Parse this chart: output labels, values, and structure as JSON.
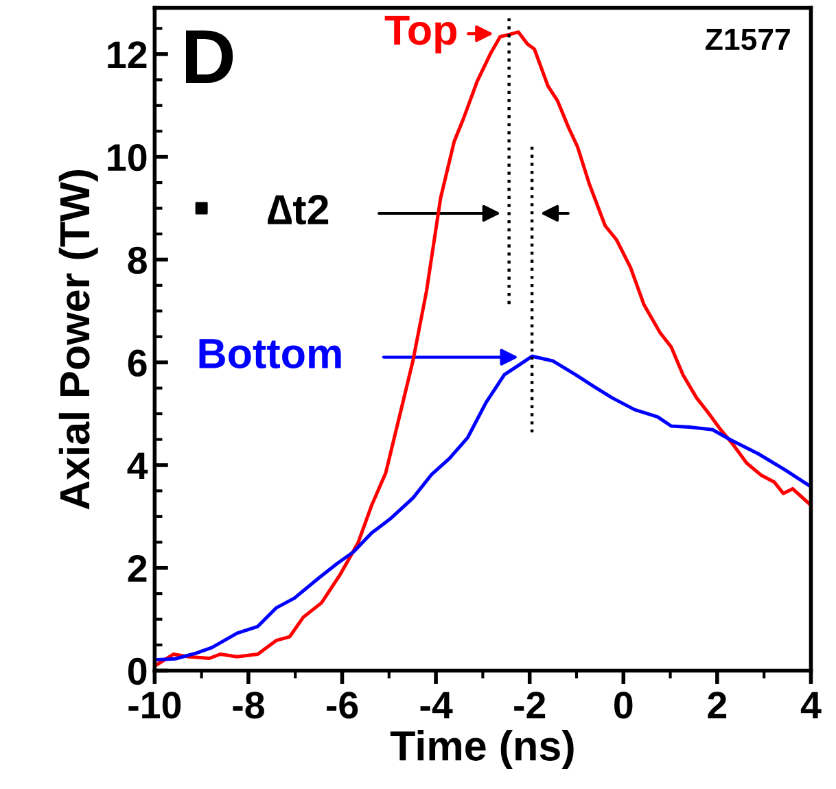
{
  "chart_data": {
    "type": "line",
    "xlabel": "Time (ns)",
    "ylabel": "Axial Power (TW)",
    "xlim": [
      -10,
      4
    ],
    "ylim": [
      0,
      12.9
    ],
    "xticks": [
      -10,
      -8,
      -6,
      -4,
      -2,
      0,
      2,
      4
    ],
    "yticks": [
      0,
      2,
      4,
      6,
      8,
      10,
      12
    ],
    "grid": false,
    "legend": false,
    "marker": "none",
    "line_style": "solid",
    "series": [
      {
        "color": "#ff0000",
        "x": [
          -10,
          -9.6,
          -9.27,
          -8.83,
          -8.6,
          -8.24,
          -7.8,
          -7.4,
          -7.12,
          -6.83,
          -6.44,
          -6.05,
          -5.66,
          -5.37,
          -5.07,
          -4.78,
          -4.49,
          -4.2,
          -3.9,
          -3.61,
          -3.41,
          -3.12,
          -2.83,
          -2.63,
          -2.44,
          -2.24,
          -2.05,
          -1.9,
          -1.61,
          -1.41,
          -1.17,
          -0.98,
          -0.73,
          -0.39,
          -0.15,
          0.15,
          0.44,
          0.78,
          1.02,
          1.27,
          1.56,
          1.8,
          2.05,
          2.34,
          2.63,
          2.93,
          3.22,
          3.41,
          3.61,
          4.0
        ],
        "values": [
          0.09,
          0.32,
          0.27,
          0.24,
          0.32,
          0.27,
          0.32,
          0.59,
          0.66,
          1.04,
          1.32,
          1.86,
          2.49,
          3.22,
          3.85,
          4.94,
          6.03,
          7.39,
          9.2,
          10.3,
          10.75,
          11.47,
          12.02,
          12.34,
          12.38,
          12.43,
          12.2,
          12.1,
          11.38,
          11.1,
          10.57,
          10.2,
          9.48,
          8.66,
          8.39,
          7.85,
          7.12,
          6.58,
          6.3,
          5.76,
          5.31,
          5.03,
          4.72,
          4.4,
          4.04,
          3.81,
          3.67,
          3.45,
          3.54,
          3.22
        ]
      },
      {
        "color": "#0000ff",
        "x": [
          -10,
          -9.56,
          -9.12,
          -8.78,
          -8.24,
          -7.8,
          -7.41,
          -7.02,
          -6.49,
          -6.1,
          -5.76,
          -5.37,
          -4.98,
          -4.49,
          -4.1,
          -3.71,
          -3.32,
          -2.93,
          -2.54,
          -2.24,
          -1.95,
          -1.51,
          -1.02,
          -0.63,
          -0.24,
          0.24,
          0.73,
          1.02,
          1.41,
          1.9,
          2.29,
          2.88,
          3.46,
          4.0
        ],
        "values": [
          0.21,
          0.23,
          0.34,
          0.45,
          0.73,
          0.86,
          1.22,
          1.41,
          1.81,
          2.09,
          2.31,
          2.68,
          2.95,
          3.36,
          3.81,
          4.13,
          4.54,
          5.22,
          5.76,
          5.94,
          6.12,
          6.03,
          5.76,
          5.53,
          5.31,
          5.08,
          4.94,
          4.76,
          4.74,
          4.69,
          4.49,
          4.22,
          3.9,
          3.58
        ]
      },
      {
        "color": "#000000",
        "line_style": "dotted",
        "x": [
          -2.44,
          -2.44
        ],
        "values": [
          12.7,
          7.1
        ]
      },
      {
        "color": "#000000",
        "line_style": "dotted",
        "x": [
          -1.95,
          -1.95
        ],
        "values": [
          10.2,
          4.6
        ]
      },
      {
        "type": "scatter",
        "marker": "square",
        "color": "#000000",
        "x": [
          -9.0
        ],
        "values": [
          9.0
        ]
      }
    ],
    "annotations": [
      "D",
      "Z1577",
      "Top",
      "Bottom",
      "∆t2"
    ]
  }
}
